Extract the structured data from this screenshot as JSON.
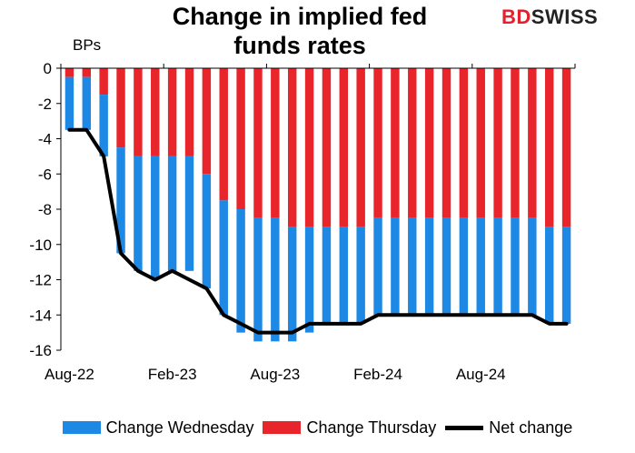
{
  "brand": {
    "part1": "BD",
    "part2": "SWISS"
  },
  "chart_data": {
    "type": "bar",
    "title_line1": "Change in implied fed",
    "title_line2": "funds rates",
    "ylabel": "BPs",
    "ylim": [
      -16,
      0
    ],
    "yticks": [
      0,
      -2,
      -4,
      -6,
      -8,
      -10,
      -12,
      -14,
      -16
    ],
    "x_tick_labels": [
      {
        "index": 0,
        "label": "Aug-22"
      },
      {
        "index": 6,
        "label": "Feb-23"
      },
      {
        "index": 12,
        "label": "Aug-23"
      },
      {
        "index": 18,
        "label": "Feb-24"
      },
      {
        "index": 24,
        "label": "Aug-24"
      }
    ],
    "categories": [
      "Aug-22",
      "Sep-22",
      "Oct-22",
      "Nov-22",
      "Dec-22",
      "Jan-23",
      "Feb-23",
      "Mar-23",
      "Apr-23",
      "May-23",
      "Jun-23",
      "Jul-23",
      "Aug-23",
      "Sep-23",
      "Oct-23",
      "Nov-23",
      "Dec-23",
      "Jan-24",
      "Feb-24",
      "Mar-24",
      "Apr-24",
      "May-24",
      "Jun-24",
      "Jul-24",
      "Aug-24",
      "Sep-24",
      "Oct-24",
      "Nov-24",
      "Dec-24",
      "Jan-25"
    ],
    "series": [
      {
        "name": "Change Wednesday",
        "color": "#1E88E5",
        "values": [
          -3.0,
          -3.0,
          -3.5,
          -6.0,
          -6.5,
          -7.0,
          -6.5,
          -6.5,
          -6.5,
          -6.5,
          -7.0,
          -7.0,
          -7.0,
          -6.5,
          -6.0,
          -5.5,
          -5.5,
          -5.5,
          -5.5,
          -5.5,
          -5.5,
          -5.5,
          -5.5,
          -5.5,
          -5.5,
          -5.5,
          -5.5,
          -5.5,
          -5.5,
          -5.5
        ]
      },
      {
        "name": "Change Thursday",
        "color": "#E8252B",
        "values": [
          -0.5,
          -0.5,
          -1.5,
          -4.5,
          -5.0,
          -5.0,
          -5.0,
          -5.0,
          -6.0,
          -7.5,
          -8.0,
          -8.5,
          -8.5,
          -9.0,
          -9.0,
          -9.0,
          -9.0,
          -9.0,
          -8.5,
          -8.5,
          -8.5,
          -8.5,
          -8.5,
          -8.5,
          -8.5,
          -8.5,
          -8.5,
          -8.5,
          -9.0,
          -9.0
        ]
      },
      {
        "name": "Net change",
        "color": "#000000",
        "values": [
          -3.5,
          -3.5,
          -5.0,
          -10.5,
          -11.5,
          -12.0,
          -11.5,
          -12.0,
          -12.5,
          -14.0,
          -14.5,
          -15.0,
          -15.0,
          -15.0,
          -14.5,
          -14.5,
          -14.5,
          -14.5,
          -14.0,
          -14.0,
          -14.0,
          -14.0,
          -14.0,
          -14.0,
          -14.0,
          -14.0,
          -14.0,
          -14.0,
          -14.5,
          -14.5
        ]
      }
    ],
    "legend": "bottom"
  }
}
